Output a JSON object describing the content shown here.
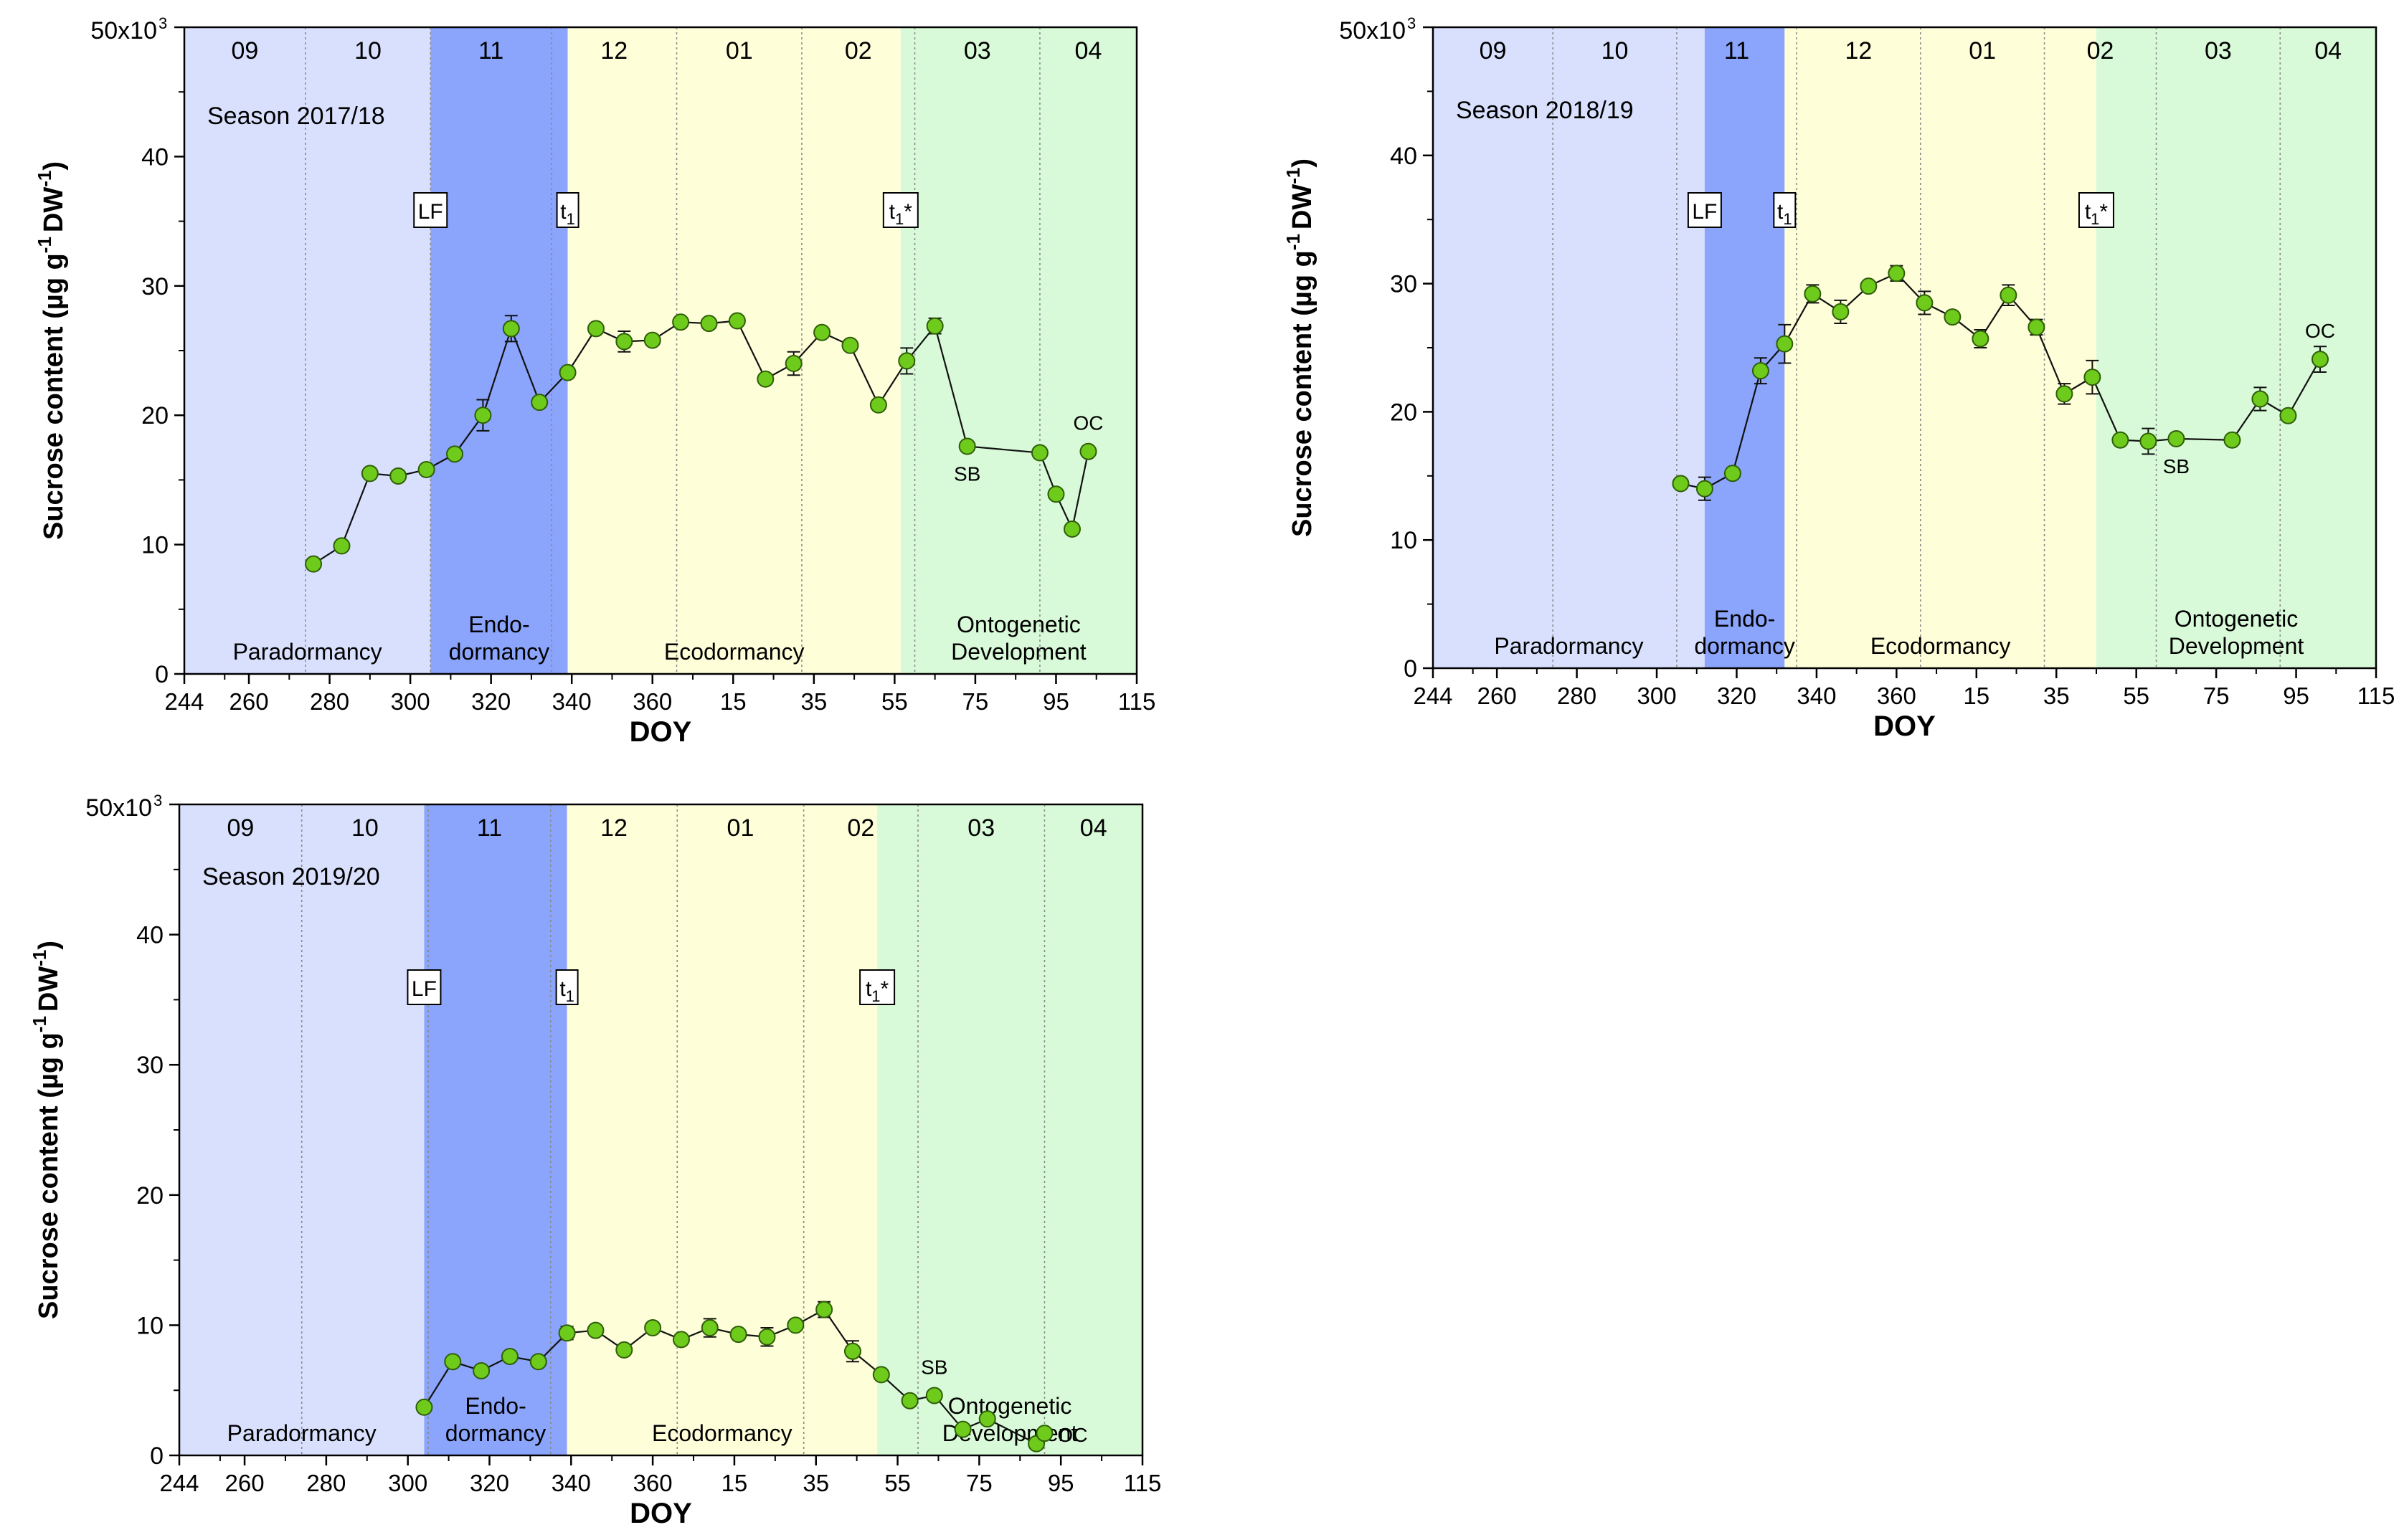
{
  "chart_data": [
    {
      "type": "line",
      "title": "Season 2017/18",
      "xlabel": "DOY",
      "ylabel": "Sucrose content (µg g-1 DW-1)",
      "ylabel_parts": [
        "Sucrose content (µg g",
        "-1",
        "DW",
        "-1",
        ")"
      ],
      "ytick_labels": [
        "0",
        "10",
        "20",
        "30",
        "40",
        "50x10"
      ],
      "ytick_superscript": "3",
      "ylim": [
        0,
        50000
      ],
      "xlim": [
        244,
        480
      ],
      "xtick_labels": [
        "244",
        "260",
        "280",
        "300",
        "320",
        "340",
        "360",
        "15",
        "35",
        "55",
        "75",
        "95",
        "115"
      ],
      "months": [
        "09",
        "10",
        "11",
        "12",
        "01",
        "02",
        "03",
        "04"
      ],
      "phases": [
        "Paradormancy",
        "Endo-dormancy",
        "Ecodormancy",
        "Ontogenetic Development"
      ],
      "phase_label_lines": [
        [
          "Paradormancy"
        ],
        [
          "Endo-",
          "dormancy"
        ],
        [
          "Ecodormancy"
        ],
        [
          "Ontogenetic",
          "Development"
        ]
      ],
      "phase_bounds": [
        [
          244,
          305
        ],
        [
          305,
          339
        ],
        [
          339,
          421.5
        ],
        [
          421.5,
          480
        ]
      ],
      "phase_colors": [
        "#d8e0fd",
        "#8ba4fc",
        "#fefed8",
        "#d8fad8"
      ],
      "markers": [
        {
          "text": "LF",
          "x": 305
        },
        {
          "text": "t1",
          "x": 339
        },
        {
          "text": "t1*",
          "x": 421.5
        }
      ],
      "series": [
        {
          "name": "Sucrose",
          "x": [
            276,
            283,
            290,
            297,
            304,
            311,
            318,
            325,
            332,
            339,
            346,
            353,
            360,
            367,
            374,
            381,
            388,
            395,
            402,
            409,
            416,
            423,
            430,
            438,
            456,
            460,
            464,
            468
          ],
          "y": [
            8500,
            9900,
            15500,
            15300,
            15800,
            17000,
            20000,
            26700,
            21000,
            23300,
            26700,
            25700,
            25800,
            27200,
            27100,
            27300,
            22800,
            24000,
            26400,
            25400,
            20800,
            24200,
            26900,
            17600,
            17100,
            13900,
            11200,
            17200
          ],
          "err": [
            0,
            0,
            0,
            0,
            0,
            0,
            1200,
            1000,
            0,
            0,
            0,
            800,
            0,
            0,
            0,
            0,
            0,
            900,
            0,
            0,
            0,
            1000,
            600,
            0,
            0,
            0,
            0,
            0
          ]
        }
      ],
      "annotations": [
        {
          "text": "SB",
          "x": 438,
          "y": 17600,
          "pos": "below"
        },
        {
          "text": "OC",
          "x": 468,
          "y": 17200,
          "pos": "above"
        }
      ]
    },
    {
      "type": "line",
      "title": "Season 2018/19",
      "xlabel": "DOY",
      "ylabel": "Sucrose content (µg g-1 DW-1)",
      "ylabel_parts": [
        "Sucrose content (µg g",
        "-1",
        "DW",
        "-1",
        ")"
      ],
      "ytick_labels": [
        "0",
        "10",
        "20",
        "30",
        "40",
        "50x10"
      ],
      "ytick_superscript": "3",
      "ylim": [
        0,
        50000
      ],
      "xlim": [
        244,
        480
      ],
      "xtick_labels": [
        "244",
        "260",
        "280",
        "300",
        "320",
        "340",
        "360",
        "15",
        "35",
        "55",
        "75",
        "95",
        "115"
      ],
      "months": [
        "09",
        "10",
        "11",
        "12",
        "01",
        "02",
        "03",
        "04"
      ],
      "phases": [
        "Paradormancy",
        "Endo-dormancy",
        "Ecodormancy",
        "Ontogenetic Development"
      ],
      "phase_label_lines": [
        [
          "Paradormancy"
        ],
        [
          "Endo-",
          "dormancy"
        ],
        [
          "Ecodormancy"
        ],
        [
          "Ontogenetic",
          "Development"
        ]
      ],
      "phase_bounds": [
        [
          244,
          312
        ],
        [
          312,
          332
        ],
        [
          332,
          410
        ],
        [
          410,
          480
        ]
      ],
      "phase_colors": [
        "#d8e0fd",
        "#8ba4fc",
        "#fefed8",
        "#d8fad8"
      ],
      "markers": [
        {
          "text": "LF",
          "x": 312
        },
        {
          "text": "t1",
          "x": 332
        },
        {
          "text": "t1*",
          "x": 410
        }
      ],
      "series": [
        {
          "name": "Sucrose",
          "x": [
            306,
            312,
            319,
            326,
            332,
            339,
            346,
            353,
            360,
            367,
            374,
            381,
            388,
            395,
            402,
            409,
            416,
            423,
            430,
            444,
            451,
            458,
            466
          ],
          "y": [
            14400,
            14000,
            15200,
            23200,
            25300,
            29200,
            27800,
            29800,
            30800,
            28500,
            27400,
            25700,
            29100,
            26600,
            21400,
            22700,
            17800,
            17700,
            17900,
            17800,
            21000,
            19700,
            24100
          ],
          "err": [
            0,
            900,
            0,
            1000,
            1500,
            700,
            900,
            0,
            600,
            900,
            0,
            700,
            800,
            600,
            800,
            1300,
            0,
            1000,
            0,
            0,
            900,
            0,
            1000
          ]
        }
      ],
      "annotations": [
        {
          "text": "SB",
          "x": 430,
          "y": 17900,
          "pos": "below"
        },
        {
          "text": "OC",
          "x": 466,
          "y": 24100,
          "pos": "above"
        }
      ]
    },
    {
      "type": "line",
      "title": "Season 2019/20",
      "xlabel": "DOY",
      "ylabel": "Sucrose content (µg g-1 DW-1)",
      "ylabel_parts": [
        "Sucrose content (µg g",
        "-1",
        "DW",
        "-1",
        ")"
      ],
      "ytick_labels": [
        "0",
        "10",
        "20",
        "30",
        "40",
        "50x10"
      ],
      "ytick_superscript": "3",
      "ylim": [
        0,
        50000
      ],
      "xlim": [
        244,
        480
      ],
      "xtick_labels": [
        "244",
        "260",
        "280",
        "300",
        "320",
        "340",
        "360",
        "15",
        "35",
        "55",
        "75",
        "95",
        "115"
      ],
      "months": [
        "09",
        "10",
        "11",
        "12",
        "01",
        "02",
        "03",
        "04"
      ],
      "phases": [
        "Paradormancy",
        "Endo-dormancy",
        "Ecodormancy",
        "Ontogenetic Development"
      ],
      "phase_label_lines": [
        [
          "Paradormancy"
        ],
        [
          "Endo-",
          "dormancy"
        ],
        [
          "Ecodormancy"
        ],
        [
          "Ontogenetic",
          "Development"
        ]
      ],
      "phase_bounds": [
        [
          244,
          304
        ],
        [
          304,
          339
        ],
        [
          339,
          415
        ],
        [
          415,
          480
        ]
      ],
      "phase_colors": [
        "#d8e0fd",
        "#8ba4fc",
        "#fefed8",
        "#d8fad8"
      ],
      "markers": [
        {
          "text": "LF",
          "x": 304
        },
        {
          "text": "t1",
          "x": 339
        },
        {
          "text": "t1*",
          "x": 415
        }
      ],
      "series": [
        {
          "name": "Sucrose",
          "x": [
            304,
            311,
            318,
            325,
            332,
            339,
            346,
            353,
            360,
            367,
            374,
            381,
            388,
            395,
            402,
            409,
            416,
            423,
            429,
            436,
            442,
            454,
            456
          ],
          "y": [
            3700,
            7200,
            6500,
            7600,
            7200,
            9400,
            9600,
            8100,
            9800,
            8900,
            9800,
            9300,
            9100,
            10000,
            11200,
            8000,
            6200,
            4200,
            4600,
            2000,
            2800,
            900,
            1700
          ],
          "err": [
            0,
            0,
            0,
            0,
            0,
            500,
            0,
            0,
            0,
            0,
            700,
            0,
            700,
            0,
            600,
            800,
            0,
            0,
            0,
            0,
            0,
            0,
            0
          ]
        }
      ],
      "annotations": [
        {
          "text": "SB",
          "x": 429,
          "y": 4600,
          "pos": "above"
        },
        {
          "text": "OC",
          "x": 456,
          "y": 1700,
          "pos": "right"
        }
      ]
    }
  ]
}
